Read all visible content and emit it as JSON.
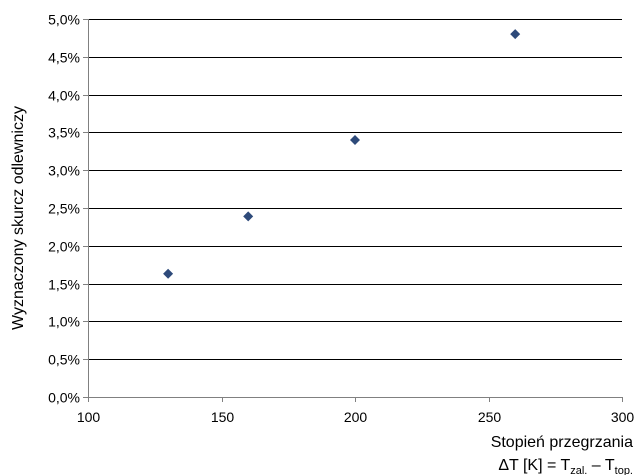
{
  "chart_data": {
    "type": "scatter",
    "x": [
      130,
      160,
      200,
      260
    ],
    "y": [
      0.0163,
      0.0239,
      0.034,
      0.048
    ],
    "xlim": [
      100,
      300
    ],
    "ylim": [
      0.0,
      0.05
    ],
    "x_ticks": [
      100,
      150,
      200,
      250,
      300
    ],
    "y_ticks": [
      0.0,
      0.005,
      0.01,
      0.015,
      0.02,
      0.025,
      0.03,
      0.035,
      0.04,
      0.045,
      0.05
    ],
    "x_tick_labels": [
      "100",
      "150",
      "200",
      "250",
      "300"
    ],
    "y_tick_labels": [
      "0,0%",
      "0,5%",
      "1,0%",
      "1,5%",
      "2,0%",
      "2,5%",
      "3,0%",
      "3,5%",
      "4,0%",
      "4,5%",
      "5,0%"
    ],
    "ylabel": "Wyznaczony skurcz odlewniczy",
    "xlabel_line1": "Stopień przegrzania",
    "xlabel_line2": {
      "prefix": "ΔT [K] = T",
      "sub1": "zal.",
      "mid": " – T",
      "sub2": "top."
    },
    "grid": "horizontal",
    "marker": "diamond",
    "marker_color": "#2e4a7a"
  }
}
